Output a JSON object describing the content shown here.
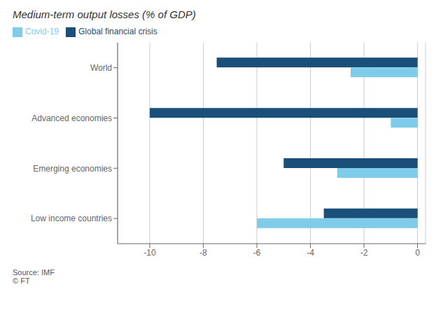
{
  "chart_data": {
    "type": "bar",
    "orientation": "horizontal",
    "title": "Medium-term output losses (% of GDP)",
    "categories": [
      "World",
      "Advanced economies",
      "Emerging economies",
      "Low income countries"
    ],
    "series": [
      {
        "name": "Global financial crisis",
        "color": "#1a4f7a",
        "values": [
          -7.5,
          -10.0,
          -5.0,
          -3.5
        ]
      },
      {
        "name": "Covid-19",
        "color": "#7ecbea",
        "values": [
          -2.5,
          -1.0,
          -3.0,
          -6.0
        ]
      }
    ],
    "xlim": [
      -11.2,
      0.3
    ],
    "xticks": [
      -10,
      -8,
      -6,
      -4,
      -2,
      0
    ],
    "grid": true,
    "legend": "upper left",
    "annotations": [
      "Source: IMF",
      "© FT"
    ]
  }
}
